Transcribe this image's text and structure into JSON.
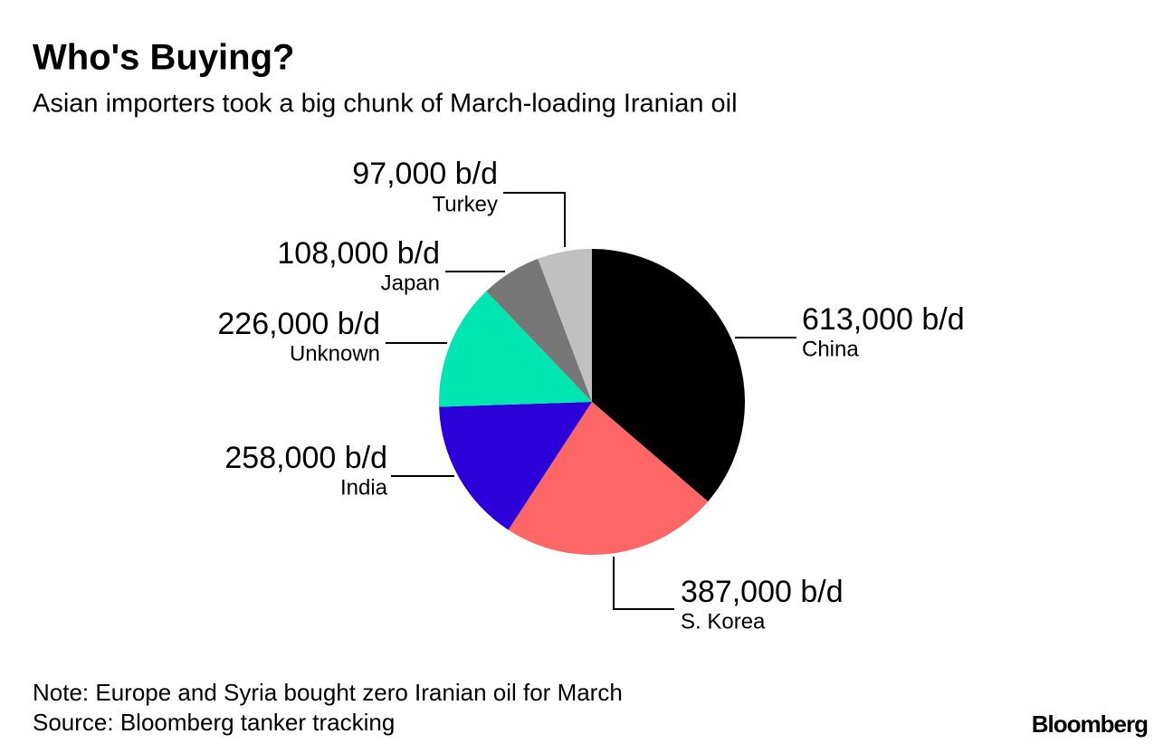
{
  "chart_data": {
    "type": "pie",
    "title": "Who's Buying?",
    "subtitle": "Asian importers took a big chunk of March-loading Iranian oil",
    "categories": [
      "China",
      "S. Korea",
      "India",
      "Unknown",
      "Japan",
      "Turkey"
    ],
    "values": [
      613000,
      387000,
      258000,
      226000,
      108000,
      97000
    ],
    "value_labels": [
      "613,000 b/d",
      "387,000 b/d",
      "258,000 b/d",
      "226,000 b/d",
      "108,000 b/d",
      "97,000 b/d"
    ],
    "colors": [
      "#000000",
      "#ff6666",
      "#2b00d9",
      "#00e6b0",
      "#777777",
      "#c0c0c0"
    ],
    "note": "Note: Europe and Syria bought zero Iranian oil for March",
    "source": "Source: Bloomberg tanker tracking"
  },
  "brand": "Bloomberg"
}
